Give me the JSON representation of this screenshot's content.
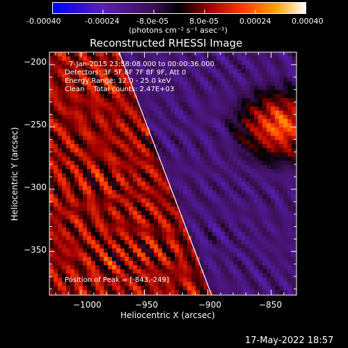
{
  "colorbar": {
    "ticks": [
      "-0.00040",
      "-0.00024",
      "-8.0e-05",
      "8.0e-05",
      "0.00024",
      "0.00040"
    ],
    "unit_label": "(photons cm⁻² s⁻¹ asec⁻²)",
    "range": [
      -0.0004,
      0.0004
    ],
    "colors": [
      "#0000ff",
      "#6a1ea0",
      "#000000",
      "#8b0000",
      "#ff3000",
      "#ffa000",
      "#ffffff"
    ]
  },
  "chart_data": {
    "type": "heatmap",
    "title": "Reconstructed RHESSI Image",
    "xlabel": "Heliocentric X (arcsec)",
    "ylabel": "Heliocentric Y (arcsec)",
    "xlim": [
      -1025,
      -830
    ],
    "ylim": [
      -385,
      -190
    ],
    "xticks": [
      -1000,
      -950,
      -900,
      -850
    ],
    "yticks": [
      -200,
      -250,
      -300,
      -350
    ],
    "xtick_labels": [
      "−1000",
      "−950",
      "−900",
      "−850"
    ],
    "ytick_labels": [
      "−200",
      "−250",
      "−300",
      "−350"
    ],
    "peak_position": [
      -843,
      -249
    ],
    "limb_line": [
      [
        -970,
        -190
      ],
      [
        -897,
        -385
      ]
    ],
    "info_lines": [
      "7-Jan-2015 23:58:08.000 to 00:00:36.000",
      "Detectors: 3F 5F 6F 7F 8F 9F, Att 0",
      "Energy Range: 12.0 - 25.0 keV",
      "Clean    Total counts: 2.47E+03"
    ],
    "peak_label": "Position of Peak = [-843,-249]"
  },
  "footer": {
    "timestamp": "17-May-2022 18:57"
  }
}
